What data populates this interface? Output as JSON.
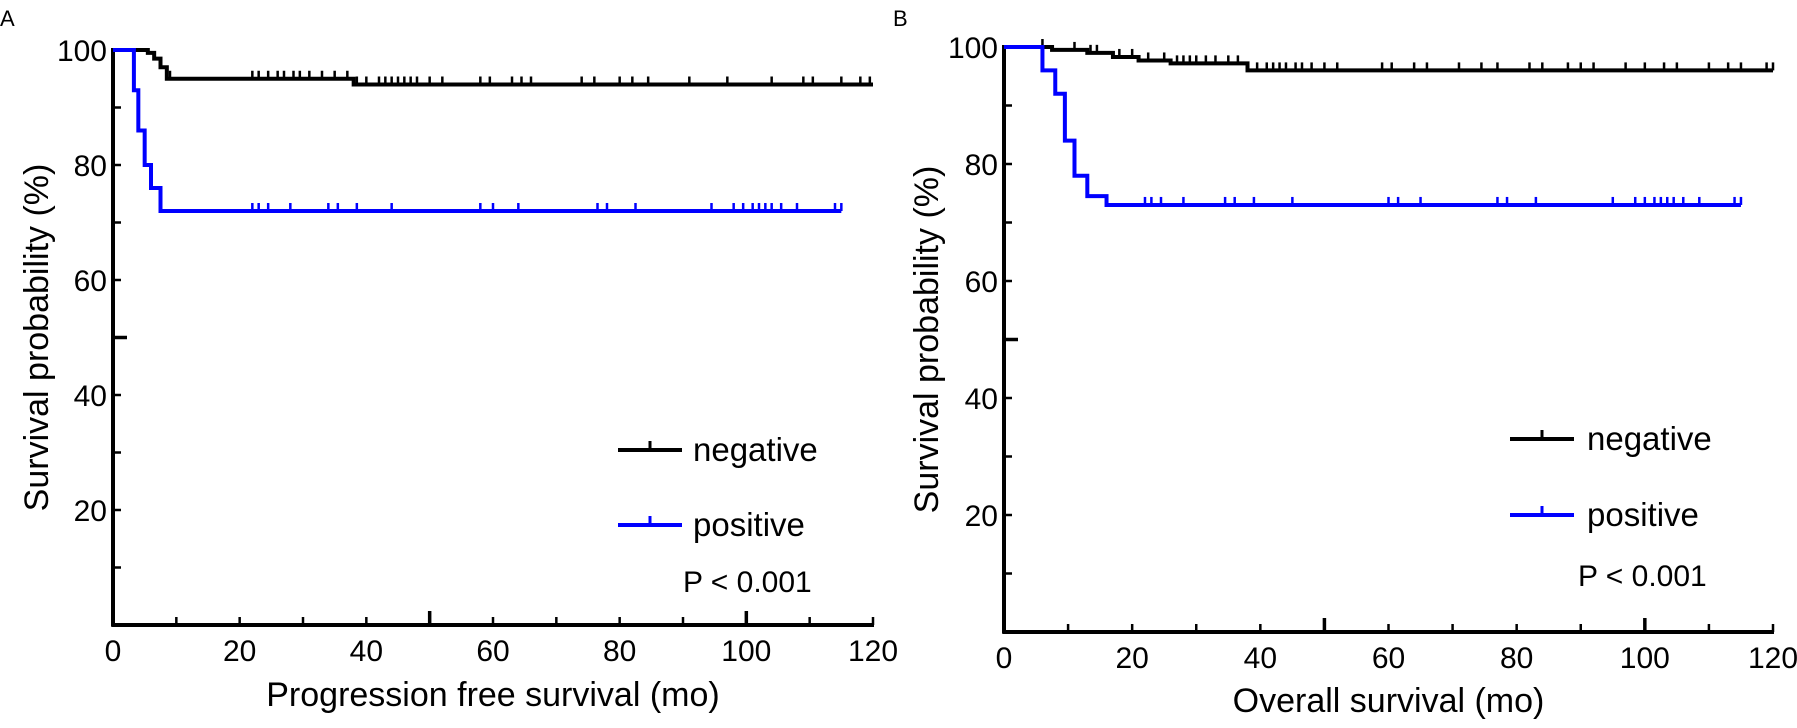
{
  "chart_data": [
    {
      "type": "line",
      "panel_label": "A",
      "title": "",
      "xlabel": "Progression free survival (mo)",
      "ylabel": "Survival probability (%)",
      "xlim": [
        0,
        120
      ],
      "ylim": [
        0,
        100
      ],
      "xticks": [
        0,
        20,
        40,
        60,
        80,
        100,
        120
      ],
      "yticks": [
        20,
        40,
        60,
        80,
        100
      ],
      "legend": [
        "negative",
        "positive"
      ],
      "legend_position": "bottom-right",
      "annotation": "P < 0.001",
      "series": [
        {
          "name": "negative",
          "color": "#000000",
          "steps": [
            [
              0,
              100
            ],
            [
              5.5,
              99.5
            ],
            [
              6.5,
              98.5
            ],
            [
              7.5,
              97
            ],
            [
              8.5,
              95
            ],
            [
              38,
              94
            ]
          ],
          "end_x": 120,
          "censor_x": [
            9,
            22,
            23,
            24.5,
            26,
            27,
            28.5,
            29.5,
            31,
            33,
            35,
            37,
            38.5,
            40,
            42,
            43,
            44,
            45,
            46,
            47,
            48,
            50,
            52,
            58,
            59.5,
            63,
            64.5,
            66,
            74,
            76,
            80,
            82,
            84.5,
            91,
            97,
            104,
            109,
            110.5,
            115,
            118,
            119.5
          ]
        },
        {
          "name": "positive",
          "color": "#0000ff",
          "steps": [
            [
              0,
              100
            ],
            [
              3.3,
              93
            ],
            [
              4,
              86
            ],
            [
              5,
              80
            ],
            [
              6,
              76
            ],
            [
              7.5,
              72
            ]
          ],
          "end_x": 115,
          "censor_x": [
            22,
            23,
            24.5,
            28,
            34,
            35.5,
            38.5,
            44,
            58,
            60,
            64,
            76.5,
            78,
            82.5,
            94.5,
            98,
            99.5,
            101,
            102,
            103,
            104,
            105.5,
            108,
            114,
            115
          ]
        }
      ]
    },
    {
      "type": "line",
      "panel_label": "B",
      "title": "",
      "xlabel": "Overall survival (mo)",
      "ylabel": "Survival probability (%)",
      "xlim": [
        0,
        120
      ],
      "ylim": [
        0,
        100
      ],
      "xticks": [
        0,
        20,
        40,
        60,
        80,
        100,
        120
      ],
      "yticks": [
        20,
        40,
        60,
        80,
        100
      ],
      "legend": [
        "negative",
        "positive"
      ],
      "legend_position": "bottom-right",
      "annotation": "P < 0.001",
      "series": [
        {
          "name": "negative",
          "color": "#000000",
          "steps": [
            [
              0,
              100
            ],
            [
              7.5,
              99.5
            ],
            [
              13,
              99
            ],
            [
              17,
              98.3
            ],
            [
              21,
              97.7
            ],
            [
              26,
              97.2
            ],
            [
              38,
              96
            ]
          ],
          "end_x": 120,
          "censor_x": [
            6,
            11,
            13.5,
            14.5,
            18,
            20,
            22.5,
            25,
            27,
            28,
            29,
            30,
            31.5,
            33,
            35,
            36.5,
            38,
            39.5,
            41,
            42,
            43,
            44,
            45.5,
            46.5,
            48,
            50,
            52,
            59,
            60.5,
            64,
            66,
            71,
            74.5,
            77,
            82,
            84,
            88,
            90,
            92,
            97,
            100,
            103,
            105,
            110,
            113,
            115,
            119,
            120
          ]
        },
        {
          "name": "positive",
          "color": "#0000ff",
          "steps": [
            [
              0,
              100
            ],
            [
              6,
              96
            ],
            [
              8,
              92
            ],
            [
              9.5,
              84
            ],
            [
              11,
              78
            ],
            [
              13,
              74.5
            ],
            [
              16,
              73
            ]
          ],
          "end_x": 115,
          "censor_x": [
            22,
            23,
            24.5,
            28,
            34.5,
            36,
            39,
            45,
            60,
            61.5,
            65,
            77,
            78.5,
            83,
            95,
            98.5,
            100,
            101.5,
            102.5,
            103.5,
            104.5,
            106,
            108.5,
            114,
            115
          ]
        }
      ]
    }
  ]
}
